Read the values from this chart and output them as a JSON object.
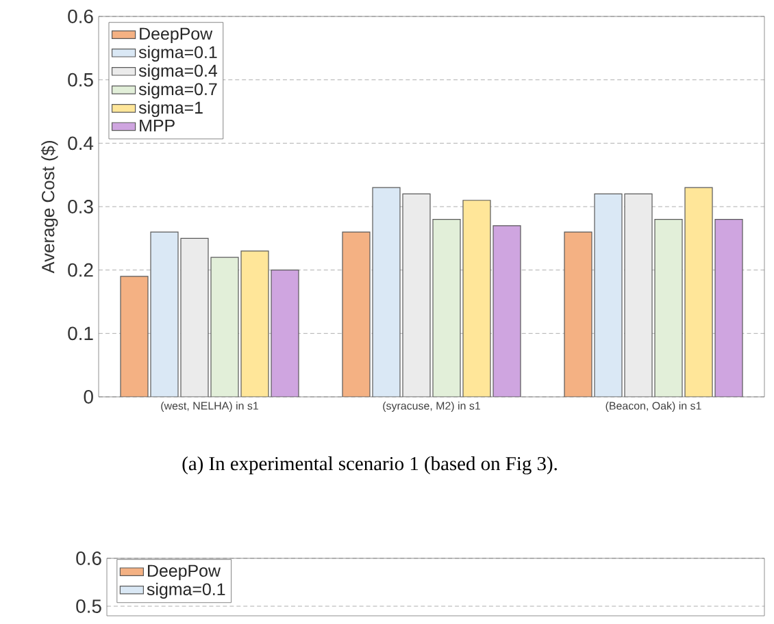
{
  "chart_data": [
    {
      "type": "bar",
      "ylabel": "Average Cost ($)",
      "categories": [
        "(west, NELHA) in s1",
        "(syracuse, M2) in s1",
        "(Beacon, Oak) in s1"
      ],
      "series": [
        {
          "name": "DeepPow",
          "color": "#f4b183",
          "values": [
            0.19,
            0.26,
            0.26
          ]
        },
        {
          "name": "sigma=0.1",
          "color": "#dae8f5",
          "values": [
            0.26,
            0.33,
            0.32
          ]
        },
        {
          "name": "sigma=0.4",
          "color": "#ebebeb",
          "values": [
            0.25,
            0.32,
            0.32
          ]
        },
        {
          "name": "sigma=0.7",
          "color": "#e2efd9",
          "values": [
            0.22,
            0.28,
            0.28
          ]
        },
        {
          "name": "sigma=1",
          "color": "#ffe699",
          "values": [
            0.23,
            0.31,
            0.33
          ]
        },
        {
          "name": "MPP",
          "color": "#cfa5e0",
          "values": [
            0.2,
            0.27,
            0.28
          ]
        }
      ],
      "ylim": [
        0,
        0.6
      ],
      "yticks": [
        0,
        0.1,
        0.2,
        0.3,
        0.4,
        0.5,
        0.6
      ],
      "grid": "y",
      "legend": "top left",
      "annotations": [
        "(a) In experimental scenario 1 (based on Fig 3)."
      ]
    },
    {
      "type": "bar",
      "categories": [
        null
      ],
      "series": [
        {
          "name": "DeepPow",
          "color": "#f4b183",
          "values": [
            null
          ]
        },
        {
          "name": "sigma=0.1",
          "color": "#dae8f5",
          "values": [
            null
          ]
        }
      ],
      "ylim": [
        0.48,
        0.6
      ],
      "yticks": [
        0.5,
        0.6
      ],
      "grid": "y",
      "legend": "top left"
    }
  ]
}
